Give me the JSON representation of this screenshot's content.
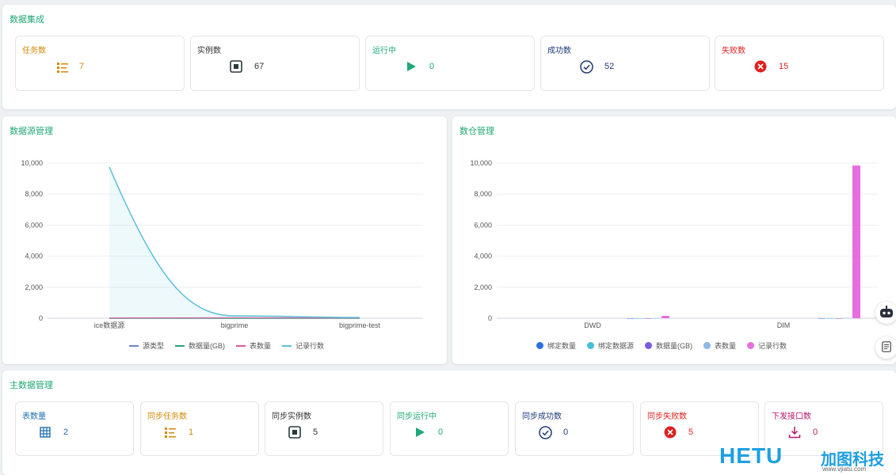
{
  "integration": {
    "title": "数据集成",
    "cards": [
      {
        "label": "任务数",
        "value": "7",
        "icon": "list-icon"
      },
      {
        "label": "实例数",
        "value": "67",
        "icon": "stop-square-icon"
      },
      {
        "label": "运行中",
        "value": "0",
        "icon": "play-icon"
      },
      {
        "label": "成功数",
        "value": "52",
        "icon": "check-circle-icon"
      },
      {
        "label": "失败数",
        "value": "15",
        "icon": "error-circle-icon"
      }
    ]
  },
  "datasource": {
    "title": "数据源管理",
    "legend": [
      "源类型",
      "数据量(GB)",
      "表数量",
      "记录行数"
    ]
  },
  "warehouse": {
    "title": "数仓管理",
    "legend": [
      "绑定数量",
      "绑定数据源",
      "数据量(GB)",
      "表数量",
      "记录行数"
    ]
  },
  "master": {
    "title": "主数据管理",
    "cards": [
      {
        "label": "表数量",
        "value": "2",
        "icon": "table-grid-icon"
      },
      {
        "label": "同步任务数",
        "value": "1",
        "icon": "list-icon"
      },
      {
        "label": "同步实例数",
        "value": "5",
        "icon": "stop-square-icon"
      },
      {
        "label": "同步运行中",
        "value": "0",
        "icon": "play-icon"
      },
      {
        "label": "同步成功数",
        "value": "0",
        "icon": "check-circle-icon"
      },
      {
        "label": "同步失败数",
        "value": "5",
        "icon": "error-circle-icon"
      },
      {
        "label": "下发接口数",
        "value": "0",
        "icon": "download-icon"
      }
    ]
  },
  "watermark": {
    "brand": "HETU",
    "cn": "加图科技",
    "url": "www.vjiatu.com"
  },
  "colors": {
    "accent_green": "#1fa874",
    "orange": "#d48806",
    "navy": "#1d3a78",
    "red": "#e02020",
    "blue": "#1f6fb2",
    "line_cyan": "#5bc0d8",
    "bar_pink": "#e66ee0"
  },
  "chart_data": [
    {
      "type": "line",
      "title": "数据源管理",
      "categories": [
        "ice数据源",
        "bigprime",
        "bigprime-test"
      ],
      "series": [
        {
          "name": "源类型",
          "values": [
            0,
            0,
            0
          ]
        },
        {
          "name": "数据量(GB)",
          "values": [
            0,
            0,
            0
          ]
        },
        {
          "name": "表数量",
          "values": [
            20,
            30,
            20
          ]
        },
        {
          "name": "记录行数",
          "values": [
            9750,
            150,
            50
          ]
        }
      ],
      "ylim": [
        0,
        10000
      ],
      "yticks": [
        "0",
        "2,000",
        "4,000",
        "6,000",
        "8,000",
        "10,000"
      ],
      "legend_position": "bottom",
      "grid": true
    },
    {
      "type": "bar",
      "title": "数仓管理",
      "categories": [
        "DWD",
        "DIM"
      ],
      "series": [
        {
          "name": "绑定数量",
          "values": [
            0,
            0
          ]
        },
        {
          "name": "绑定数据源",
          "values": [
            0,
            0
          ]
        },
        {
          "name": "数据量(GB)",
          "values": [
            0,
            0
          ]
        },
        {
          "name": "表数量",
          "values": [
            10,
            20
          ]
        },
        {
          "name": "记录行数",
          "values": [
            150,
            9850
          ]
        }
      ],
      "ylim": [
        0,
        10000
      ],
      "yticks": [
        "0",
        "2,000",
        "4,000",
        "6,000",
        "8,000",
        "10,000"
      ],
      "legend_position": "bottom",
      "grid": true
    }
  ]
}
